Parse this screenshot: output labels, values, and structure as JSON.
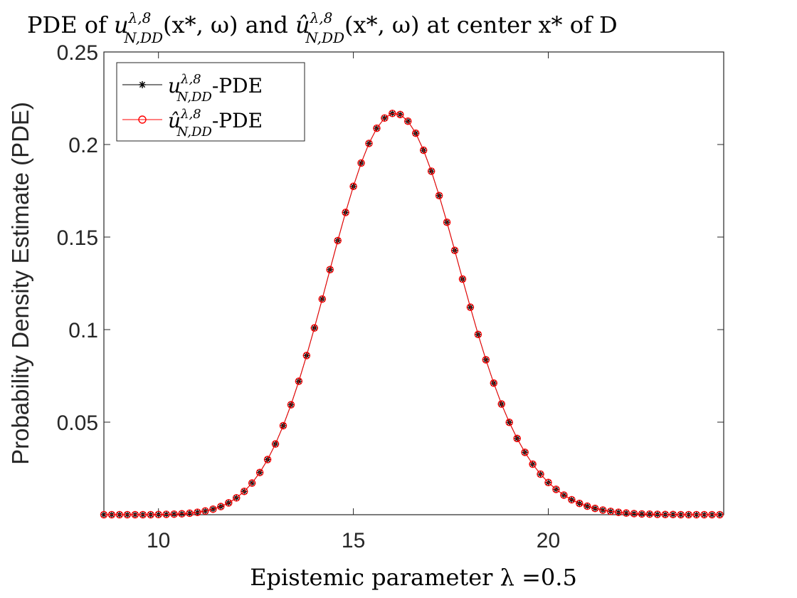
{
  "chart_data": {
    "type": "line",
    "title": {
      "prefix": "PDE of ",
      "series1": "u",
      "series2": "û",
      "superscript": "λ,8",
      "subscript": "N,DD",
      "args": "(x*, ω)",
      "joiner": " and ",
      "suffix": " at center x* of D"
    },
    "xlabel": "Epistemic parameter λ =0.5",
    "ylabel": "Probability Density Estimate (PDE)",
    "xlim": [
      8.6,
      24.5
    ],
    "ylim": [
      0,
      0.25
    ],
    "xticks": [
      10,
      15,
      20
    ],
    "xtick_labels": [
      "10",
      "15",
      "20"
    ],
    "yticks": [
      0.05,
      0.1,
      0.15,
      0.2,
      0.25
    ],
    "ytick_labels": [
      "0.05",
      "0.1",
      "0.15",
      "0.2",
      "0.25"
    ],
    "grid": false,
    "legend_position": "top-left",
    "series": [
      {
        "base": "u",
        "superscript": "λ,8",
        "subscript": "N,DD",
        "suffix": "-PDE",
        "color": "#000000",
        "marker": "asterisk",
        "x": [
          8.6,
          8.8,
          9.0,
          9.2,
          9.4,
          9.6,
          9.8,
          10.0,
          10.2,
          10.4,
          10.6,
          10.8,
          11.0,
          11.2,
          11.4,
          11.6,
          11.8,
          12.0,
          12.2,
          12.4,
          12.6,
          12.8,
          13.0,
          13.2,
          13.4,
          13.6,
          13.8,
          14.0,
          14.2,
          14.4,
          14.6,
          14.8,
          15.0,
          15.2,
          15.4,
          15.6,
          15.8,
          16.0,
          16.2,
          16.4,
          16.6,
          16.8,
          17.0,
          17.2,
          17.4,
          17.6,
          17.8,
          18.0,
          18.2,
          18.4,
          18.6,
          18.8,
          19.0,
          19.2,
          19.4,
          19.6,
          19.8,
          20.0,
          20.2,
          20.4,
          20.6,
          20.8,
          21.0,
          21.2,
          21.4,
          21.6,
          21.8,
          22.0,
          22.2,
          22.4,
          22.6,
          22.8,
          23.0,
          23.2,
          23.4,
          23.6,
          23.8,
          24.0,
          24.2,
          24.4
        ],
        "y": [
          0.0,
          0.0,
          0.0,
          0.0,
          0.0,
          0.0,
          0.0,
          0.0001,
          0.0002,
          0.0003,
          0.0005,
          0.0008,
          0.0013,
          0.002,
          0.003,
          0.0044,
          0.0064,
          0.0091,
          0.0126,
          0.0171,
          0.0228,
          0.0298,
          0.0382,
          0.0481,
          0.0594,
          0.0721,
          0.086,
          0.1009,
          0.1165,
          0.1324,
          0.1481,
          0.1633,
          0.1774,
          0.19,
          0.2006,
          0.2088,
          0.2143,
          0.2168,
          0.2162,
          0.2126,
          0.2061,
          0.1969,
          0.1856,
          0.1724,
          0.158,
          0.1428,
          0.1273,
          0.1121,
          0.0974,
          0.0837,
          0.0711,
          0.0598,
          0.0499,
          0.0412,
          0.0337,
          0.0273,
          0.0219,
          0.0174,
          0.0137,
          0.0106,
          0.0081,
          0.0061,
          0.0046,
          0.0034,
          0.0025,
          0.0018,
          0.0013,
          0.0009,
          0.0006,
          0.0004,
          0.0003,
          0.0002,
          0.0001,
          0.0001,
          0.0,
          0.0,
          0.0,
          0.0,
          0.0,
          0.0
        ]
      },
      {
        "base": "û",
        "superscript": "λ,8",
        "subscript": "N,DD",
        "suffix": "-PDE",
        "color": "#ff0000",
        "marker": "circle",
        "x": [
          8.6,
          8.8,
          9.0,
          9.2,
          9.4,
          9.6,
          9.8,
          10.0,
          10.2,
          10.4,
          10.6,
          10.8,
          11.0,
          11.2,
          11.4,
          11.6,
          11.8,
          12.0,
          12.2,
          12.4,
          12.6,
          12.8,
          13.0,
          13.2,
          13.4,
          13.6,
          13.8,
          14.0,
          14.2,
          14.4,
          14.6,
          14.8,
          15.0,
          15.2,
          15.4,
          15.6,
          15.8,
          16.0,
          16.2,
          16.4,
          16.6,
          16.8,
          17.0,
          17.2,
          17.4,
          17.6,
          17.8,
          18.0,
          18.2,
          18.4,
          18.6,
          18.8,
          19.0,
          19.2,
          19.4,
          19.6,
          19.8,
          20.0,
          20.2,
          20.4,
          20.6,
          20.8,
          21.0,
          21.2,
          21.4,
          21.6,
          21.8,
          22.0,
          22.2,
          22.4,
          22.6,
          22.8,
          23.0,
          23.2,
          23.4,
          23.6,
          23.8,
          24.0,
          24.2,
          24.4
        ],
        "y": [
          0.0,
          0.0,
          0.0,
          0.0,
          0.0,
          0.0,
          0.0,
          0.0001,
          0.0002,
          0.0003,
          0.0005,
          0.0008,
          0.0013,
          0.002,
          0.003,
          0.0044,
          0.0064,
          0.0091,
          0.0126,
          0.0171,
          0.0228,
          0.0298,
          0.0382,
          0.0481,
          0.0594,
          0.0721,
          0.086,
          0.1009,
          0.1165,
          0.1324,
          0.1481,
          0.1633,
          0.1774,
          0.19,
          0.2006,
          0.2088,
          0.2143,
          0.2168,
          0.2162,
          0.2126,
          0.2061,
          0.1969,
          0.1856,
          0.1724,
          0.158,
          0.1428,
          0.1273,
          0.1121,
          0.0974,
          0.0837,
          0.0711,
          0.0598,
          0.0499,
          0.0412,
          0.0337,
          0.0273,
          0.0219,
          0.0174,
          0.0137,
          0.0106,
          0.0081,
          0.0061,
          0.0046,
          0.0034,
          0.0025,
          0.0018,
          0.0013,
          0.0009,
          0.0006,
          0.0004,
          0.0003,
          0.0002,
          0.0001,
          0.0001,
          0.0,
          0.0,
          0.0,
          0.0,
          0.0,
          0.0
        ]
      }
    ]
  }
}
